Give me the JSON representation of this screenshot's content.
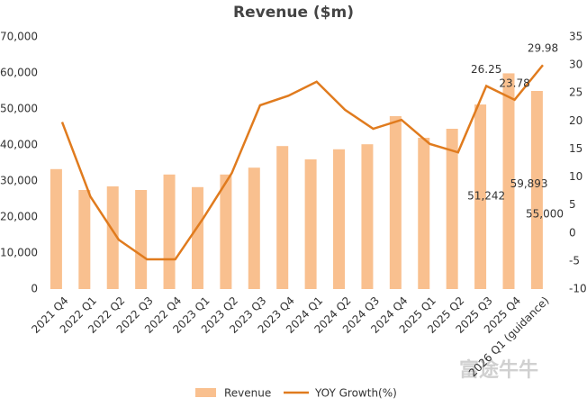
{
  "chart_data": {
    "type": "bar-line",
    "title": "Revenue ($m)",
    "watermark": "富途牛牛",
    "categories": [
      "2021 Q4",
      "2022 Q1",
      "2022 Q2",
      "2022 Q3",
      "2022 Q4",
      "2023 Q1",
      "2023 Q2",
      "2023 Q3",
      "2023 Q4",
      "2024 Q1",
      "2024 Q2",
      "2024 Q3",
      "2024 Q4",
      "2025 Q1",
      "2025 Q2",
      "2025 Q3",
      "2025 Q4",
      "2026 Q1 (guidance)"
    ],
    "series": [
      {
        "name": "Revenue",
        "type": "bar",
        "color": "#f9c08f",
        "values": [
          33300,
          27500,
          28500,
          27500,
          31800,
          28300,
          31800,
          33700,
          39700,
          36000,
          38800,
          40200,
          48000,
          42000,
          44500,
          51242,
          59893,
          55000
        ],
        "value_labels": [
          null,
          null,
          null,
          null,
          null,
          null,
          null,
          null,
          null,
          null,
          null,
          null,
          null,
          null,
          null,
          "51,242",
          "59,893",
          "55,000"
        ]
      },
      {
        "name": "YOY Growth(%)",
        "type": "line",
        "axis": "y2",
        "color": "#e07b1e",
        "values": [
          19.8,
          6.5,
          -1.2,
          -4.7,
          -4.7,
          2.7,
          10.7,
          22.8,
          24.5,
          27.0,
          22.0,
          18.6,
          20.2,
          15.9,
          14.4,
          26.25,
          23.78,
          29.98
        ],
        "value_labels": [
          null,
          null,
          null,
          null,
          null,
          null,
          null,
          null,
          null,
          null,
          null,
          null,
          null,
          null,
          null,
          "26.25",
          "23.78",
          "29.98"
        ]
      }
    ],
    "ylim": [
      0,
      70000
    ],
    "yticks": [
      0,
      {
        "value": 10000,
        "label": "10,000"
      },
      {
        "value": 20000,
        "label": "20,000"
      },
      {
        "value": 30000,
        "label": "30,000"
      },
      {
        "value": 40000,
        "label": "40,000"
      },
      {
        "value": 50000,
        "label": "50,000"
      },
      {
        "value": 60000,
        "label": "60,000"
      },
      {
        "value": 70000,
        "label": "70,000"
      }
    ],
    "y2lim": [
      -10,
      35
    ],
    "y2ticks": [
      -10,
      -5,
      0,
      5,
      10,
      15,
      20,
      25,
      30,
      35
    ],
    "grid": false,
    "legend": "bottom"
  }
}
